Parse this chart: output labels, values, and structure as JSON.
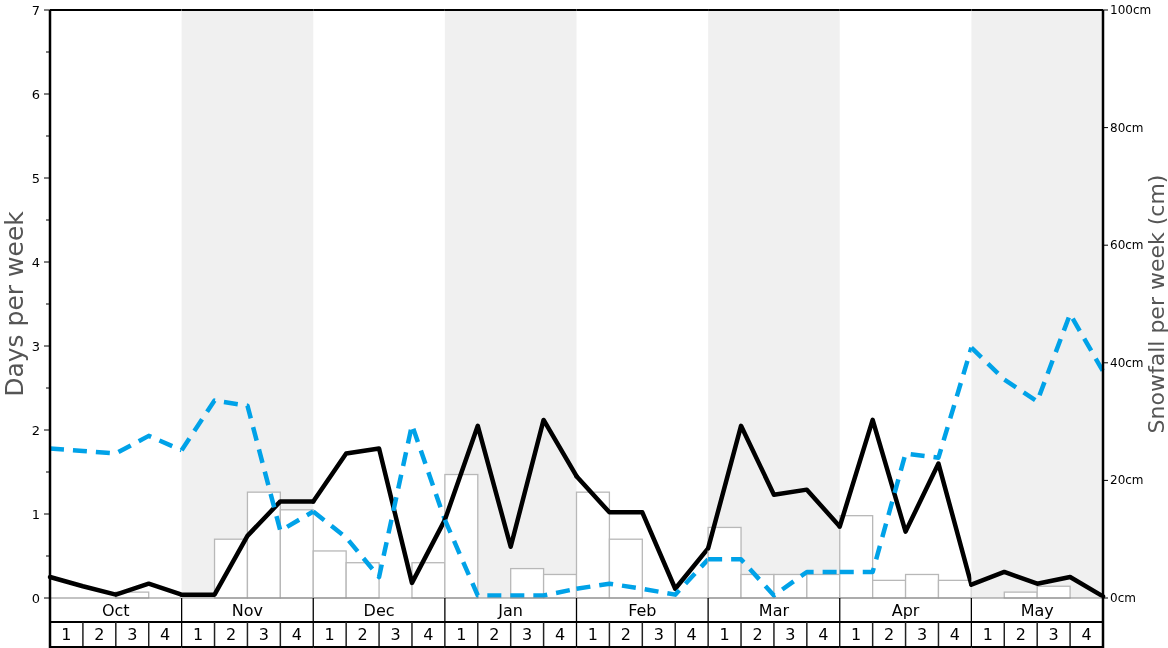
{
  "chart_data": [
    {
      "type": "bar",
      "xlabel": "Oct",
      "ylabel": "Days per week",
      "xlim": [
        0.5,
        4.5
      ],
      "xticks": [
        1,
        2,
        3,
        4
      ],
      "ylim": [
        0,
        7
      ],
      "yticks": [
        0,
        {
          "value": 0.5,
          "label": null
        },
        1,
        {
          "value": 1.5,
          "label": null
        },
        2,
        {
          "value": 2.5,
          "label": null
        },
        3,
        {
          "value": 3.5,
          "label": null
        },
        4,
        {
          "value": 4.5,
          "label": null
        },
        5,
        {
          "value": 5.5,
          "label": null
        },
        6,
        {
          "value": 6.5,
          "label": null
        },
        7
      ],
      "y2lim": [
        0,
        100
      ],
      "tick_labels": "xy",
      "series": [
        {
          "axis": "y2",
          "color": "#ffffff",
          "x": [
            1,
            2,
            3,
            4
          ],
          "values": [
            0,
            0,
            1,
            0
          ]
        },
        {
          "type": "line",
          "axis": "y",
          "color": "#000000",
          "line_style": "solid",
          "x": [
            0.5,
            1.5,
            2.5,
            3.5,
            4.5
          ],
          "values": [
            0.25,
            0.14,
            0.04,
            0.17,
            0.04
          ]
        },
        {
          "type": "line",
          "axis": "y",
          "color": "#00a2e8",
          "line_style": "dashed",
          "x": [
            0.5,
            1.5,
            2.5,
            3.5,
            4.5
          ],
          "values": [
            1.78,
            1.75,
            1.72,
            1.93,
            1.76
          ]
        }
      ]
    },
    {
      "type": "bar",
      "xlabel": "Nov",
      "xlim": [
        0.5,
        4.5
      ],
      "xticks": [
        1,
        2,
        3,
        4
      ],
      "ylim": [
        0,
        7
      ],
      "y2lim": [
        0,
        100
      ],
      "tick_labels": "x",
      "series": [
        {
          "axis": "y2",
          "color": "#ffffff",
          "x": [
            1,
            2,
            3,
            4
          ],
          "values": [
            0,
            10,
            18,
            15
          ]
        },
        {
          "type": "line",
          "axis": "y",
          "color": "#000000",
          "line_style": "solid",
          "x": [
            0.5,
            1.5,
            2.5,
            3.5,
            4.5
          ],
          "values": [
            0.04,
            0.04,
            0.74,
            1.15,
            1.15
          ]
        },
        {
          "type": "line",
          "axis": "y",
          "color": "#00a2e8",
          "line_style": "dashed",
          "x": [
            0.5,
            1.5,
            2.5,
            3.5,
            4.5
          ],
          "values": [
            1.76,
            2.35,
            2.29,
            0.8,
            1.03
          ]
        }
      ]
    },
    {
      "type": "bar",
      "xlabel": "Dec",
      "xlim": [
        0.5,
        4.5
      ],
      "xticks": [
        1,
        2,
        3,
        4
      ],
      "ylim": [
        0,
        7
      ],
      "y2lim": [
        0,
        100
      ],
      "tick_labels": "x",
      "series": [
        {
          "axis": "y2",
          "color": "#ffffff",
          "x": [
            1,
            2,
            3,
            4
          ],
          "values": [
            8,
            6,
            0,
            6
          ]
        },
        {
          "type": "line",
          "axis": "y",
          "color": "#000000",
          "line_style": "solid",
          "x": [
            0.5,
            1.5,
            2.5,
            3.5,
            4.5
          ],
          "values": [
            1.15,
            1.72,
            1.78,
            0.18,
            0.93
          ]
        },
        {
          "type": "line",
          "axis": "y",
          "color": "#00a2e8",
          "line_style": "dashed",
          "x": [
            0.5,
            1.5,
            2.5,
            3.5,
            4.5
          ],
          "values": [
            1.03,
            0.72,
            0.25,
            2.06,
            0.93
          ]
        }
      ]
    },
    {
      "type": "bar",
      "xlabel": "Jan",
      "xlim": [
        0.5,
        4.5
      ],
      "xticks": [
        1,
        2,
        3,
        4
      ],
      "ylim": [
        0,
        7
      ],
      "y2lim": [
        0,
        100
      ],
      "tick_labels": "x",
      "series": [
        {
          "axis": "y2",
          "color": "#ffffff",
          "x": [
            1,
            2,
            3,
            4
          ],
          "values": [
            21,
            0,
            5,
            4
          ]
        },
        {
          "type": "line",
          "axis": "y",
          "color": "#000000",
          "line_style": "solid",
          "x": [
            0.5,
            1.5,
            2.5,
            3.5,
            4.5
          ],
          "values": [
            0.93,
            2.05,
            0.61,
            2.12,
            1.45
          ]
        },
        {
          "type": "line",
          "axis": "y",
          "color": "#00a2e8",
          "line_style": "dashed",
          "x": [
            0.5,
            1.5,
            2.5,
            3.5,
            4.5
          ],
          "values": [
            0.93,
            0.03,
            0.03,
            0.03,
            0.11
          ]
        }
      ]
    },
    {
      "type": "bar",
      "xlabel": "Feb",
      "xlim": [
        0.5,
        4.5
      ],
      "xticks": [
        1,
        2,
        3,
        4
      ],
      "ylim": [
        0,
        7
      ],
      "y2lim": [
        0,
        100
      ],
      "tick_labels": "x",
      "series": [
        {
          "axis": "y2",
          "color": "#ffffff",
          "x": [
            1,
            2,
            3,
            4
          ],
          "values": [
            18,
            10,
            0,
            0
          ]
        },
        {
          "type": "line",
          "axis": "y",
          "color": "#000000",
          "line_style": "solid",
          "x": [
            0.5,
            1.5,
            2.5,
            3.5,
            4.5
          ],
          "values": [
            1.45,
            1.02,
            1.02,
            0.11,
            0.59
          ]
        },
        {
          "type": "line",
          "axis": "y",
          "color": "#00a2e8",
          "line_style": "dashed",
          "x": [
            0.5,
            1.5,
            2.5,
            3.5,
            4.5
          ],
          "values": [
            0.11,
            0.17,
            0.11,
            0.04,
            0.46
          ]
        }
      ]
    },
    {
      "type": "bar",
      "xlabel": "Mar",
      "xlim": [
        0.5,
        4.5
      ],
      "xticks": [
        1,
        2,
        3,
        4
      ],
      "ylim": [
        0,
        7
      ],
      "y2lim": [
        0,
        100
      ],
      "tick_labels": "x",
      "series": [
        {
          "axis": "y2",
          "color": "#ffffff",
          "x": [
            1,
            2,
            3,
            4
          ],
          "values": [
            12,
            4,
            4,
            4
          ]
        },
        {
          "type": "line",
          "axis": "y",
          "color": "#000000",
          "line_style": "solid",
          "x": [
            0.5,
            1.5,
            2.5,
            3.5,
            4.5
          ],
          "values": [
            0.59,
            2.05,
            1.23,
            1.29,
            0.85
          ]
        },
        {
          "type": "line",
          "axis": "y",
          "color": "#00a2e8",
          "line_style": "dashed",
          "x": [
            0.5,
            1.5,
            2.5,
            3.5,
            4.5
          ],
          "values": [
            0.46,
            0.46,
            0.03,
            0.31,
            0.31
          ]
        }
      ]
    },
    {
      "type": "bar",
      "xlabel": "Apr",
      "xlim": [
        0.5,
        4.5
      ],
      "xticks": [
        1,
        2,
        3,
        4
      ],
      "ylim": [
        0,
        7
      ],
      "y2lim": [
        0,
        100
      ],
      "tick_labels": "x",
      "series": [
        {
          "axis": "y2",
          "color": "#ffffff",
          "x": [
            1,
            2,
            3,
            4
          ],
          "values": [
            14,
            3,
            4,
            3
          ]
        },
        {
          "type": "line",
          "axis": "y",
          "color": "#000000",
          "line_style": "solid",
          "x": [
            0.5,
            1.5,
            2.5,
            3.5,
            4.5
          ],
          "values": [
            0.85,
            2.12,
            0.79,
            1.6,
            0.16
          ]
        },
        {
          "type": "line",
          "axis": "y",
          "color": "#00a2e8",
          "line_style": "dashed",
          "x": [
            0.5,
            1.5,
            2.5,
            3.5,
            4.5
          ],
          "values": [
            0.31,
            0.31,
            1.72,
            1.67,
            2.98
          ]
        }
      ]
    },
    {
      "type": "bar",
      "xlabel": "May",
      "y2label": "Snowfall per week (cm)",
      "xlim": [
        0.5,
        4.5
      ],
      "xticks": [
        1,
        2,
        3,
        4
      ],
      "ylim": [
        0,
        7
      ],
      "y2lim": [
        0,
        100
      ],
      "y2ticks": [
        {
          "value": 0,
          "label": "0cm"
        },
        {
          "value": 20,
          "label": "20cm"
        },
        {
          "value": 40,
          "label": "40cm"
        },
        {
          "value": 60,
          "label": "60cm"
        },
        {
          "value": 80,
          "label": "80cm"
        },
        {
          "value": 100,
          "label": "100cm"
        }
      ],
      "tick_labels": "xy2",
      "series": [
        {
          "axis": "y2",
          "color": "#ffffff",
          "x": [
            1,
            2,
            3,
            4
          ],
          "values": [
            0,
            1,
            2,
            0
          ]
        },
        {
          "type": "line",
          "axis": "y",
          "color": "#000000",
          "line_style": "solid",
          "x": [
            0.5,
            1.5,
            2.5,
            3.5,
            4.5
          ],
          "values": [
            0.16,
            0.31,
            0.17,
            0.25,
            0.02
          ]
        },
        {
          "type": "line",
          "axis": "y",
          "color": "#00a2e8",
          "line_style": "dashed",
          "x": [
            0.5,
            1.5,
            2.5,
            3.5,
            4.5
          ],
          "values": [
            2.98,
            2.6,
            2.34,
            3.38,
            2.7
          ]
        }
      ]
    }
  ]
}
